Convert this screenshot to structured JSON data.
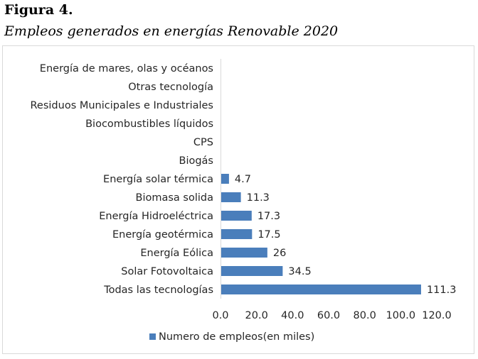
{
  "figure": {
    "label": "Figura 4.",
    "caption": "Empleos generados en energías Renovable 2020"
  },
  "chart_data": {
    "type": "bar",
    "orientation": "horizontal",
    "categories": [
      "Energía de mares, olas y océanos",
      "Otras tecnología",
      "Residuos Municipales e Industriales",
      "Biocombustibles líquidos",
      "CPS",
      "Biogás",
      "Energía solar térmica",
      "Biomasa solida",
      "Energía Hidroeléctrica",
      "Energía geotérmica",
      "Energía Eólica",
      "Solar Fotovoltaica",
      "Todas las tecnologías"
    ],
    "series": [
      {
        "name": "Numero de empleos(en miles)",
        "values": [
          null,
          null,
          null,
          null,
          null,
          null,
          4.7,
          11.3,
          17.3,
          17.5,
          26,
          34.5,
          111.3
        ],
        "labels": [
          "",
          "",
          "",
          "",
          "",
          "",
          "4.7",
          "11.3",
          "17.3",
          "17.5",
          "26",
          "34.5",
          "111.3"
        ]
      }
    ],
    "xlim": [
      0,
      120
    ],
    "xticks": [
      "0.0",
      "20.0",
      "40.0",
      "60.0",
      "80.0",
      "100.0",
      "120.0"
    ],
    "grid": false,
    "legend_position": "bottom",
    "bar_color": "#4a7ebb"
  }
}
